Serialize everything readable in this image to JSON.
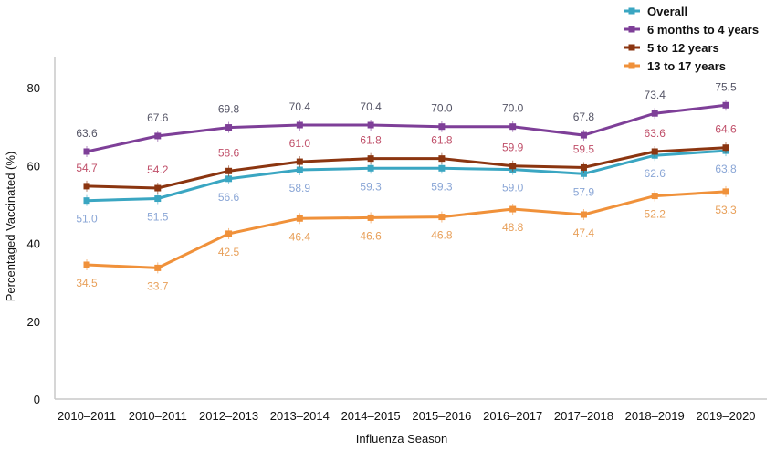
{
  "chart_data": {
    "type": "line",
    "title": "",
    "xlabel": "Influenza Season",
    "ylabel": "Percentaged Vaccinated (%)",
    "ylim": [
      0,
      88
    ],
    "yticks": [
      0,
      20,
      40,
      60,
      80
    ],
    "grid": false,
    "legend_position": "top-right",
    "categories": [
      "2010–2011",
      "2010–2011",
      "2012–2013",
      "2013–2014",
      "2014–2015",
      "2015–2016",
      "2016–2017",
      "2017–2018",
      "2018–2019",
      "2019–2020"
    ],
    "series": [
      {
        "name": "Overall",
        "color": "#3aa6c2",
        "label_color": "#8aa6d6",
        "values": [
          51.0,
          51.5,
          56.6,
          58.9,
          59.3,
          59.3,
          59.0,
          57.9,
          62.6,
          63.8
        ],
        "labels": [
          "51.0",
          "51.5",
          "56.6",
          "58.9",
          "59.3",
          "59.3",
          "59.0",
          "57.9",
          "62.6",
          "63.8"
        ],
        "label_side": "below"
      },
      {
        "name": "6 months to 4 years",
        "color": "#7e3f98",
        "label_color": "#555566",
        "values": [
          63.6,
          67.6,
          69.8,
          70.4,
          70.4,
          70.0,
          70.0,
          67.8,
          73.4,
          75.5
        ],
        "labels": [
          "63.6",
          "67.6",
          "69.8",
          "70.4",
          "70.4",
          "70.0",
          "70.0",
          "67.8",
          "73.4",
          "75.5"
        ],
        "label_side": "above"
      },
      {
        "name": "5 to 12 years",
        "color": "#8b3510",
        "label_color": "#c0506a",
        "values": [
          54.7,
          54.2,
          58.6,
          61.0,
          61.8,
          61.8,
          59.9,
          59.5,
          63.6,
          64.6
        ],
        "labels": [
          "54.7",
          "54.2",
          "58.6",
          "61.0",
          "61.8",
          "61.8",
          "59.9",
          "59.5",
          "63.6",
          "64.6"
        ],
        "label_side": "above"
      },
      {
        "name": "13 to 17 years",
        "color": "#f0913a",
        "label_color": "#e8a05a",
        "values": [
          34.5,
          33.7,
          42.5,
          46.4,
          46.6,
          46.8,
          48.8,
          47.4,
          52.2,
          53.3
        ],
        "labels": [
          "34.5",
          "33.7",
          "42.5",
          "46.4",
          "46.6",
          "46.8",
          "48.8",
          "47.4",
          "52.2",
          "53.3"
        ],
        "label_side": "below"
      }
    ]
  }
}
